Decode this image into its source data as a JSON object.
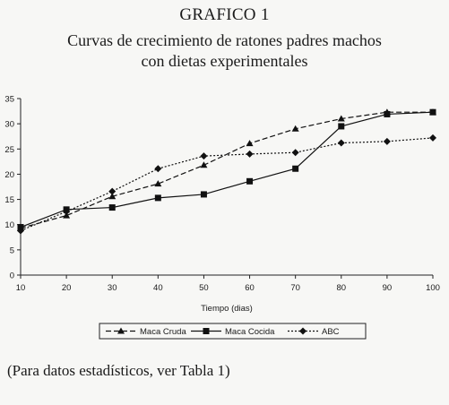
{
  "page": {
    "title": "GRAFICO 1",
    "subtitle_line1": "Curvas de crecimiento de ratones padres machos",
    "subtitle_line2": "con dietas experimentales",
    "footnote": "(Para datos estadísticos, ver Tabla 1)"
  },
  "chart_data": {
    "type": "line",
    "x": [
      10,
      20,
      30,
      40,
      50,
      60,
      70,
      80,
      90,
      100
    ],
    "xlabel": "Tiempo (dias)",
    "ylabel": "",
    "xlim": [
      10,
      100
    ],
    "ylim": [
      0,
      35
    ],
    "xticks": [
      10,
      20,
      30,
      40,
      50,
      60,
      70,
      80,
      90,
      100
    ],
    "yticks": [
      0,
      5,
      10,
      15,
      20,
      25,
      30,
      35
    ],
    "grid": false,
    "legend_position": "bottom",
    "series": [
      {
        "name": "Maca Cruda",
        "marker": "triangle",
        "line_style": "dashed",
        "values": [
          9.3,
          11.8,
          15.6,
          18.1,
          21.8,
          26.1,
          29.0,
          31.0,
          32.3,
          32.3
        ]
      },
      {
        "name": "Maca Cocida",
        "marker": "square",
        "line_style": "solid",
        "values": [
          9.5,
          13.0,
          13.4,
          15.3,
          16.0,
          18.6,
          21.1,
          29.5,
          31.9,
          32.3
        ]
      },
      {
        "name": "ABC",
        "marker": "diamond",
        "line_style": "dotted",
        "values": [
          8.8,
          12.6,
          16.6,
          21.1,
          23.6,
          24.0,
          24.3,
          26.2,
          26.5,
          27.2
        ]
      }
    ]
  }
}
